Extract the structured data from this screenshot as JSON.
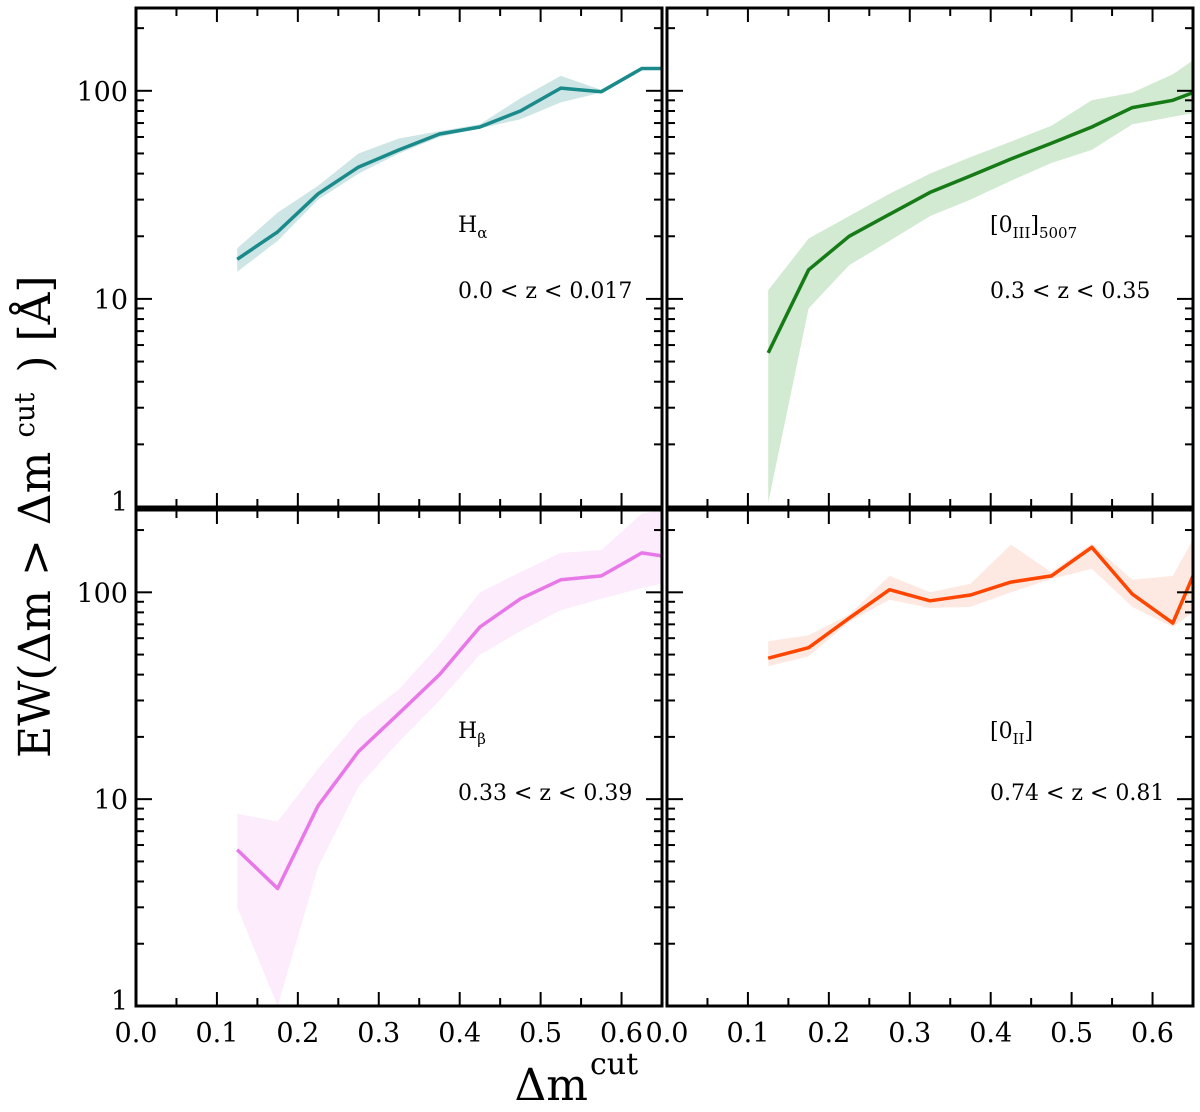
{
  "figure": {
    "xlabel": "Δm",
    "xlabel_sup": "cut",
    "ylabel_main": "EW(Δm > Δm",
    "ylabel_sup": "cut",
    "ylabel_end": ") [Å]"
  },
  "chart_data": [
    {
      "type": "line",
      "panel": "top-left",
      "color": "#1a8a8a",
      "band_color": "#1a8a8a",
      "xlim": [
        0.0,
        0.65
      ],
      "ylim": [
        1,
        250
      ],
      "yscale": "log",
      "xticks": [],
      "yticks": [
        1,
        10,
        100
      ],
      "ytick_labels": [
        "1",
        "10",
        "100"
      ],
      "annotation": {
        "line": "H",
        "line_sub": "α",
        "range": "0.0 < z < 0.017"
      },
      "series": [
        {
          "name": "Hα",
          "x": [
            0.125,
            0.175,
            0.225,
            0.275,
            0.325,
            0.375,
            0.425,
            0.475,
            0.525,
            0.575,
            0.625,
            0.65
          ],
          "values": [
            15.5,
            21,
            32,
            43,
            52,
            62,
            67,
            80,
            103,
            99,
            128,
            128
          ],
          "lower": [
            13.5,
            19,
            30,
            40,
            50,
            60,
            66,
            73,
            88,
            98,
            127,
            127
          ],
          "upper": [
            17.5,
            26,
            35,
            50,
            59,
            64,
            69,
            92,
            118,
            101,
            129,
            129
          ]
        }
      ]
    },
    {
      "type": "line",
      "panel": "top-right",
      "color": "#167a16",
      "band_color": "#2e9e2e",
      "xlim": [
        0.0,
        0.65
      ],
      "ylim": [
        1,
        250
      ],
      "yscale": "log",
      "xticks": [],
      "yticks": [
        1,
        10,
        100
      ],
      "ytick_labels": [],
      "annotation": {
        "line": "[0",
        "line_sub": "III",
        "line_end": "]",
        "line_end_sub": "5007",
        "range": "0.3 < z < 0.35"
      },
      "series": [
        {
          "name": "[OIII]5007",
          "x": [
            0.125,
            0.175,
            0.225,
            0.275,
            0.325,
            0.375,
            0.425,
            0.475,
            0.525,
            0.575,
            0.625,
            0.65
          ],
          "values": [
            5.5,
            13.8,
            20,
            25.5,
            32.5,
            39,
            47,
            56,
            67,
            83,
            90,
            98
          ],
          "lower": [
            1.05,
            9,
            14.5,
            19,
            25,
            30,
            37,
            45,
            52,
            69,
            75,
            78
          ],
          "upper": [
            11,
            19.5,
            25,
            32,
            40,
            48,
            57,
            68,
            90,
            98,
            120,
            140
          ]
        }
      ]
    },
    {
      "type": "line",
      "panel": "bottom-left",
      "color": "#e878e8",
      "band_color": "#f0a8f0",
      "xlim": [
        0.0,
        0.65
      ],
      "ylim": [
        1,
        250
      ],
      "yscale": "log",
      "xticks": [
        0.0,
        0.1,
        0.2,
        0.3,
        0.4,
        0.5,
        0.6
      ],
      "xtick_labels": [
        "0.0",
        "0.1",
        "0.2",
        "0.3",
        "0.4",
        "0.5",
        "0.6"
      ],
      "yticks": [
        1,
        10,
        100
      ],
      "ytick_labels": [
        "1",
        "10",
        "100"
      ],
      "annotation": {
        "line": "H",
        "line_sub": "β",
        "range": "0.33 < z < 0.39"
      },
      "series": [
        {
          "name": "Hβ",
          "x": [
            0.125,
            0.175,
            0.225,
            0.275,
            0.325,
            0.375,
            0.425,
            0.475,
            0.525,
            0.575,
            0.625,
            0.65
          ],
          "values": [
            5.7,
            3.7,
            9.3,
            17,
            26,
            40,
            68,
            93,
            115,
            120,
            155,
            150
          ],
          "lower": [
            3.0,
            1.0,
            4.7,
            11.5,
            19,
            30,
            50,
            65,
            82,
            93,
            105,
            110
          ],
          "upper": [
            8.5,
            7.8,
            14,
            24,
            34,
            56,
            100,
            125,
            155,
            160,
            240,
            250
          ]
        }
      ]
    },
    {
      "type": "line",
      "panel": "bottom-right",
      "color": "#ff4500",
      "band_color": "#f89a78",
      "xlim": [
        0.0,
        0.65
      ],
      "ylim": [
        1,
        250
      ],
      "yscale": "log",
      "xticks": [
        0.0,
        0.1,
        0.2,
        0.3,
        0.4,
        0.5,
        0.6
      ],
      "xtick_labels": [
        "0.0",
        "0.1",
        "0.2",
        "0.3",
        "0.4",
        "0.5",
        "0.6"
      ],
      "yticks": [
        1,
        10,
        100
      ],
      "ytick_labels": [],
      "annotation": {
        "line": "[0",
        "line_sub": "II",
        "line_end": "]",
        "range": "0.74 < z < 0.81"
      },
      "series": [
        {
          "name": "[OII]",
          "x": [
            0.125,
            0.175,
            0.225,
            0.275,
            0.325,
            0.375,
            0.425,
            0.475,
            0.525,
            0.575,
            0.625,
            0.65
          ],
          "values": [
            48,
            54,
            75,
            103,
            91,
            97,
            112,
            120,
            165,
            98,
            71,
            120
          ],
          "lower": [
            44,
            49,
            72,
            92,
            84,
            85,
            100,
            116,
            130,
            85,
            68,
            80
          ],
          "upper": [
            58,
            62,
            78,
            120,
            100,
            110,
            170,
            125,
            172,
            115,
            120,
            180
          ]
        }
      ]
    }
  ]
}
